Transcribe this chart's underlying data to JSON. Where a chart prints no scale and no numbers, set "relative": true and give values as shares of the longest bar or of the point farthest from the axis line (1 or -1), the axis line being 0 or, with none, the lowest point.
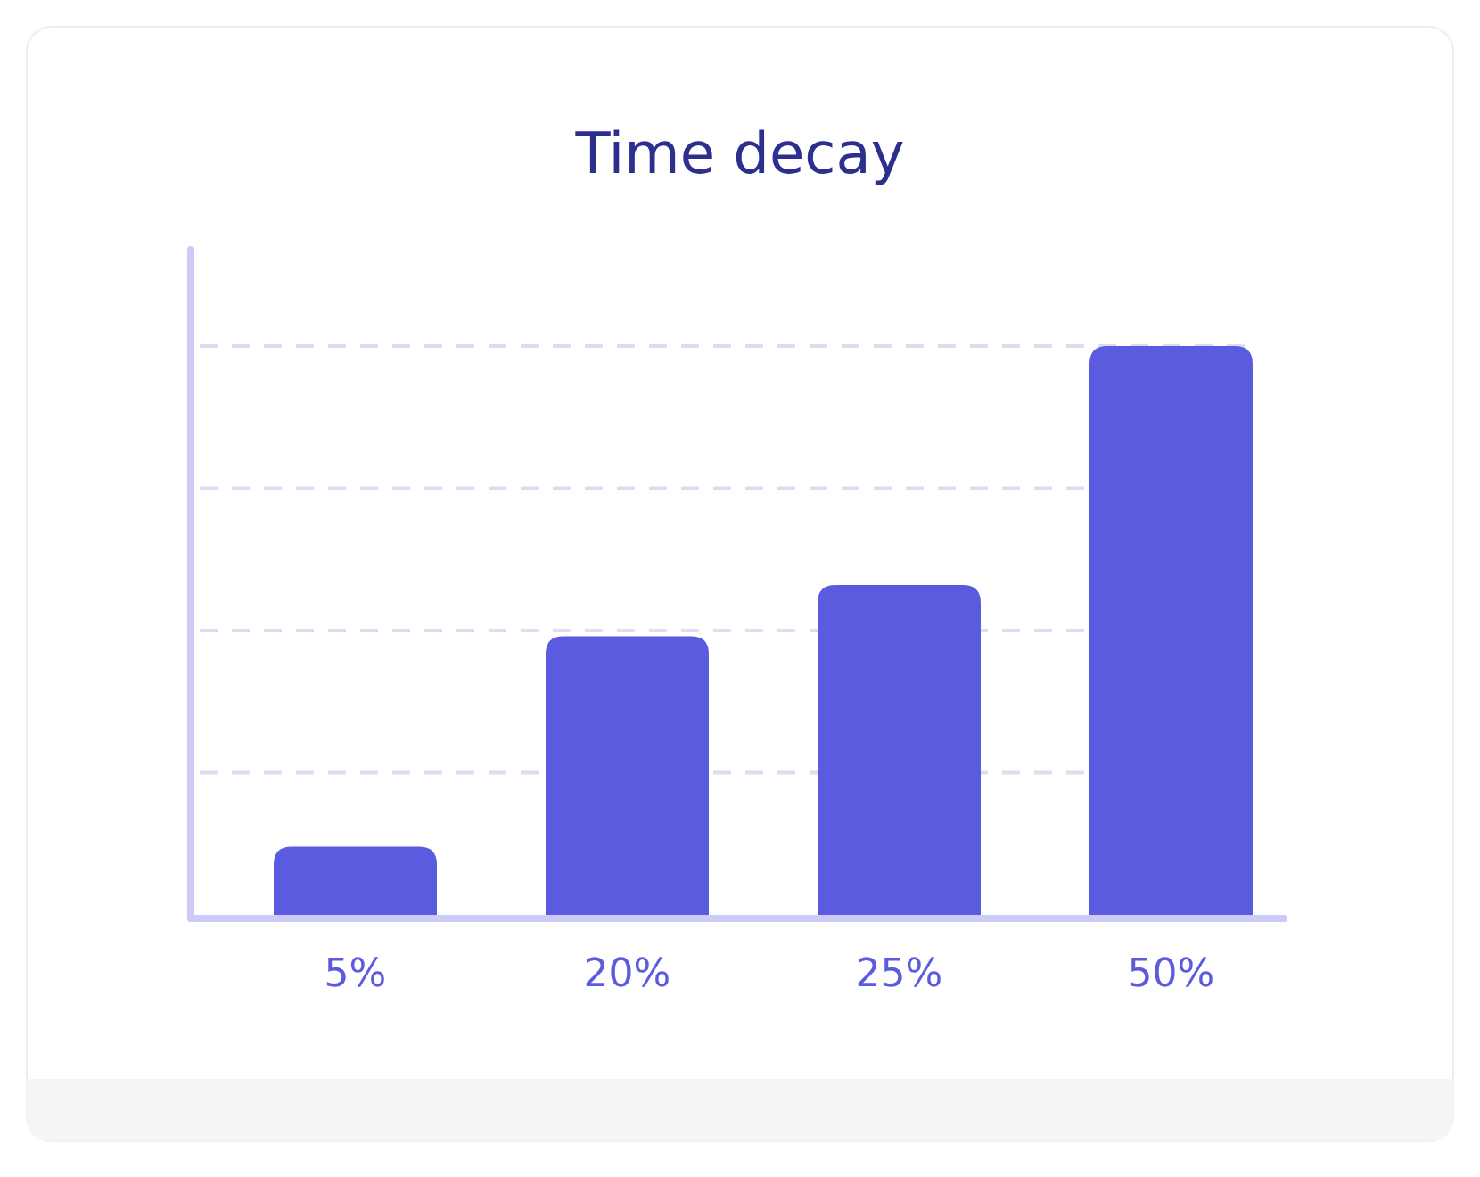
{
  "chart_data": {
    "type": "bar",
    "title": "Time decay",
    "categories": [
      "5%",
      "20%",
      "25%",
      "50%"
    ],
    "values": [
      0.12,
      0.49,
      0.58,
      1
    ],
    "relative": true,
    "color": "#5b5be0",
    "grid": "y"
  }
}
